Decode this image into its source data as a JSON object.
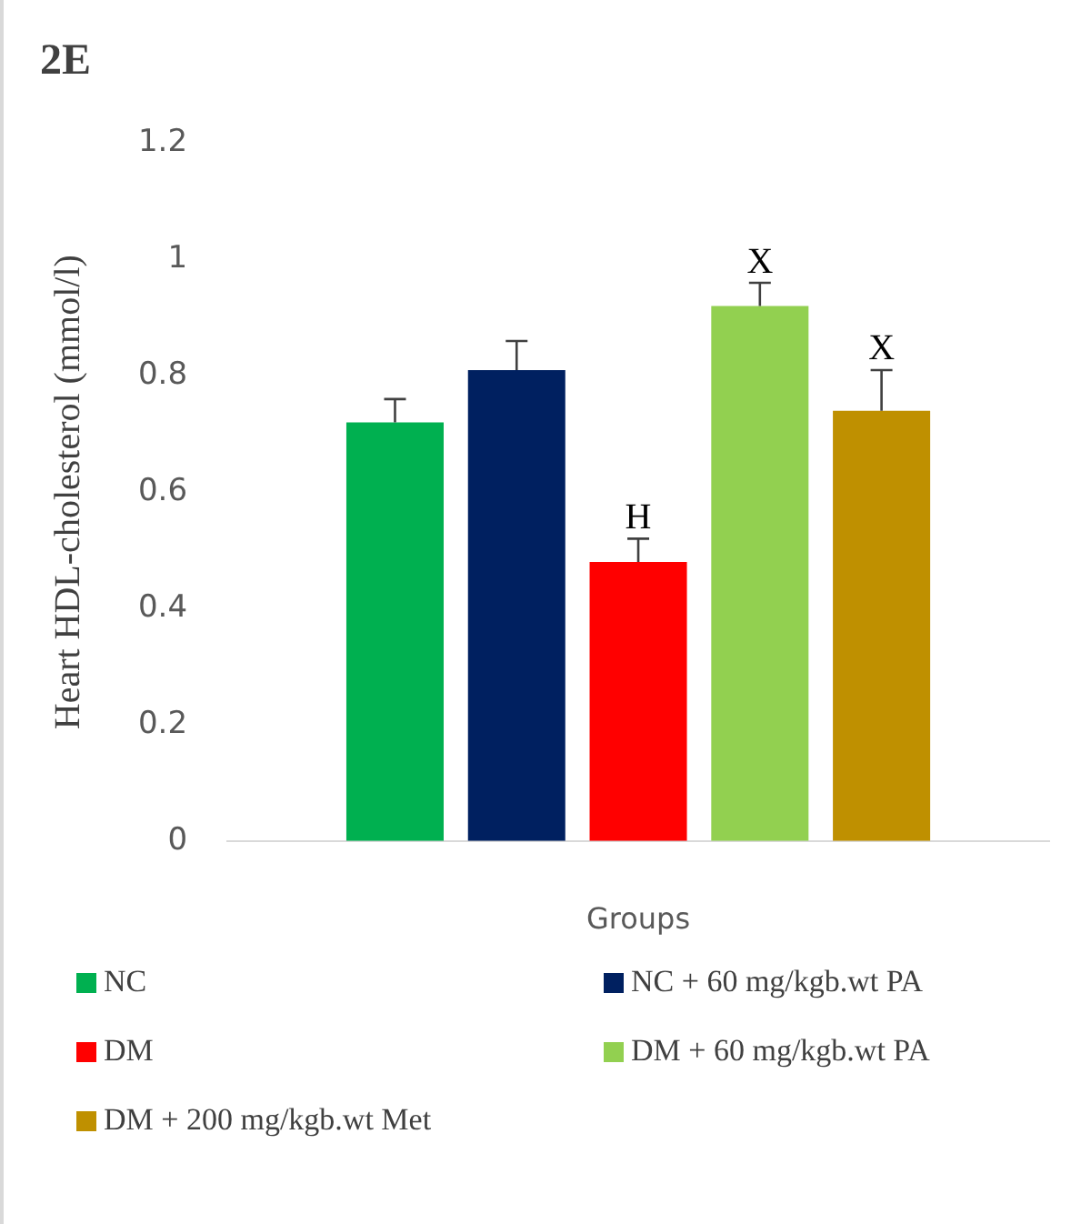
{
  "chart_data": {
    "type": "bar",
    "title": "2E",
    "ylabel": "Heart HDL-cholesterol (mmol/l)",
    "xlabel": "Groups",
    "categories": [
      null
    ],
    "series": [
      {
        "name": "NC",
        "color": "#00b050",
        "values": [
          0.72
        ],
        "errors": [
          0.04
        ]
      },
      {
        "name": "NC + 60 mg/kgb.wt PA",
        "color": "#002060",
        "values": [
          0.81
        ],
        "errors": [
          0.05
        ]
      },
      {
        "name": "DM",
        "color": "#ff0000",
        "values": [
          0.48
        ],
        "errors": [
          0.04
        ]
      },
      {
        "name": "DM + 60 mg/kgb.wt PA",
        "color": "#92d050",
        "values": [
          0.92
        ],
        "errors": [
          0.04
        ]
      },
      {
        "name": "DM + 200 mg/kgb.wt Met",
        "color": "#bf9000",
        "values": [
          0.74
        ],
        "errors": [
          0.07
        ]
      }
    ],
    "annotations": [
      {
        "text": "H",
        "y": 0.52
      },
      {
        "text": "X",
        "y": 0.96
      },
      {
        "text": "X",
        "y": 0.81
      }
    ],
    "ylim": [
      0,
      1.2
    ],
    "yticks": [
      0,
      0.2,
      0.4,
      0.6,
      0.8,
      1,
      1.2
    ],
    "grid": false,
    "legend": "bottom"
  }
}
